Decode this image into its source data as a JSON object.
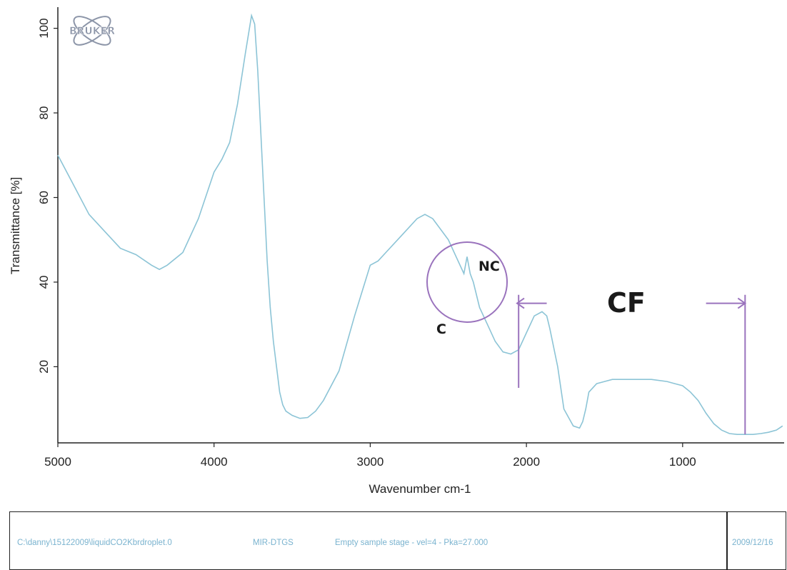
{
  "logo": {
    "text": "BRUKER"
  },
  "chart_data": {
    "type": "line",
    "xlabel": "Wavenumber cm-1",
    "ylabel": "Transmittance [%]",
    "xlim": [
      5000,
      350
    ],
    "ylim": [
      2,
      105
    ],
    "x_ticks": [
      5000,
      4000,
      3000,
      2000,
      1000
    ],
    "y_ticks": [
      20,
      40,
      60,
      80,
      100
    ],
    "grid": false,
    "line_color": "#8cc4d6",
    "annotation_color": "#9a73bd",
    "series": [
      {
        "x": [
          5000,
          4900,
          4800,
          4700,
          4600,
          4500,
          4400,
          4350,
          4300,
          4200,
          4100,
          4000,
          3950,
          3900,
          3850,
          3800,
          3760,
          3740,
          3720,
          3700,
          3680,
          3660,
          3640,
          3620,
          3600,
          3580,
          3560,
          3540,
          3500,
          3450,
          3400,
          3350,
          3300,
          3200,
          3100,
          3000,
          2950,
          2900,
          2800,
          2700,
          2650,
          2600,
          2500,
          2450,
          2400,
          2380,
          2360,
          2340,
          2300,
          2250,
          2200,
          2150,
          2100,
          2050,
          2000,
          1950,
          1900,
          1870,
          1850,
          1800,
          1760,
          1700,
          1660,
          1640,
          1620,
          1600,
          1550,
          1500,
          1450,
          1400,
          1300,
          1200,
          1100,
          1050,
          1000,
          950,
          900,
          850,
          800,
          750,
          700,
          650,
          600,
          550,
          500,
          450,
          400,
          380,
          360
        ],
        "y": [
          70,
          63,
          56,
          52,
          48,
          46.5,
          44,
          43,
          44,
          47,
          55,
          66,
          69,
          73,
          82,
          94,
          103,
          101,
          90,
          75,
          60,
          45,
          34,
          26,
          20,
          14,
          11,
          9.5,
          8.5,
          7.8,
          8,
          9.5,
          12,
          19,
          32,
          44,
          45,
          47,
          51,
          55,
          56,
          55,
          50,
          46,
          42,
          46,
          42,
          40,
          34,
          30,
          26,
          23.5,
          23,
          24,
          28,
          32,
          33,
          32,
          29,
          20,
          10,
          6,
          5.5,
          7,
          10,
          14,
          16,
          16.5,
          17,
          17,
          17,
          17,
          16.5,
          16,
          15.5,
          14,
          12,
          9,
          6.5,
          5,
          4.2,
          4,
          4,
          4,
          4.2,
          4.5,
          5,
          5.5,
          6
        ]
      }
    ],
    "annotations": [
      {
        "text": "NC",
        "type": "label"
      },
      {
        "text": "C",
        "type": "label"
      },
      {
        "text": "CF",
        "type": "label"
      },
      {
        "type": "circle",
        "x": 2380,
        "y": 40
      },
      {
        "type": "vline",
        "x": 2050,
        "y_from": 15,
        "y_to": 37
      },
      {
        "type": "vline",
        "x": 600,
        "y_from": 4,
        "y_to": 37
      },
      {
        "type": "arrow",
        "from": 1870,
        "to": 2060,
        "y": 35
      },
      {
        "type": "arrow",
        "from": 850,
        "to": 600,
        "y": 35
      }
    ]
  },
  "footer": {
    "file_path": "C:\\danny\\15122009\\liquidCO2Kbrdroplet.0",
    "detector": "MIR-DTGS",
    "description": "Empty sample stage - vel=4 - Pka=27.000",
    "date": "2009/12/16"
  }
}
